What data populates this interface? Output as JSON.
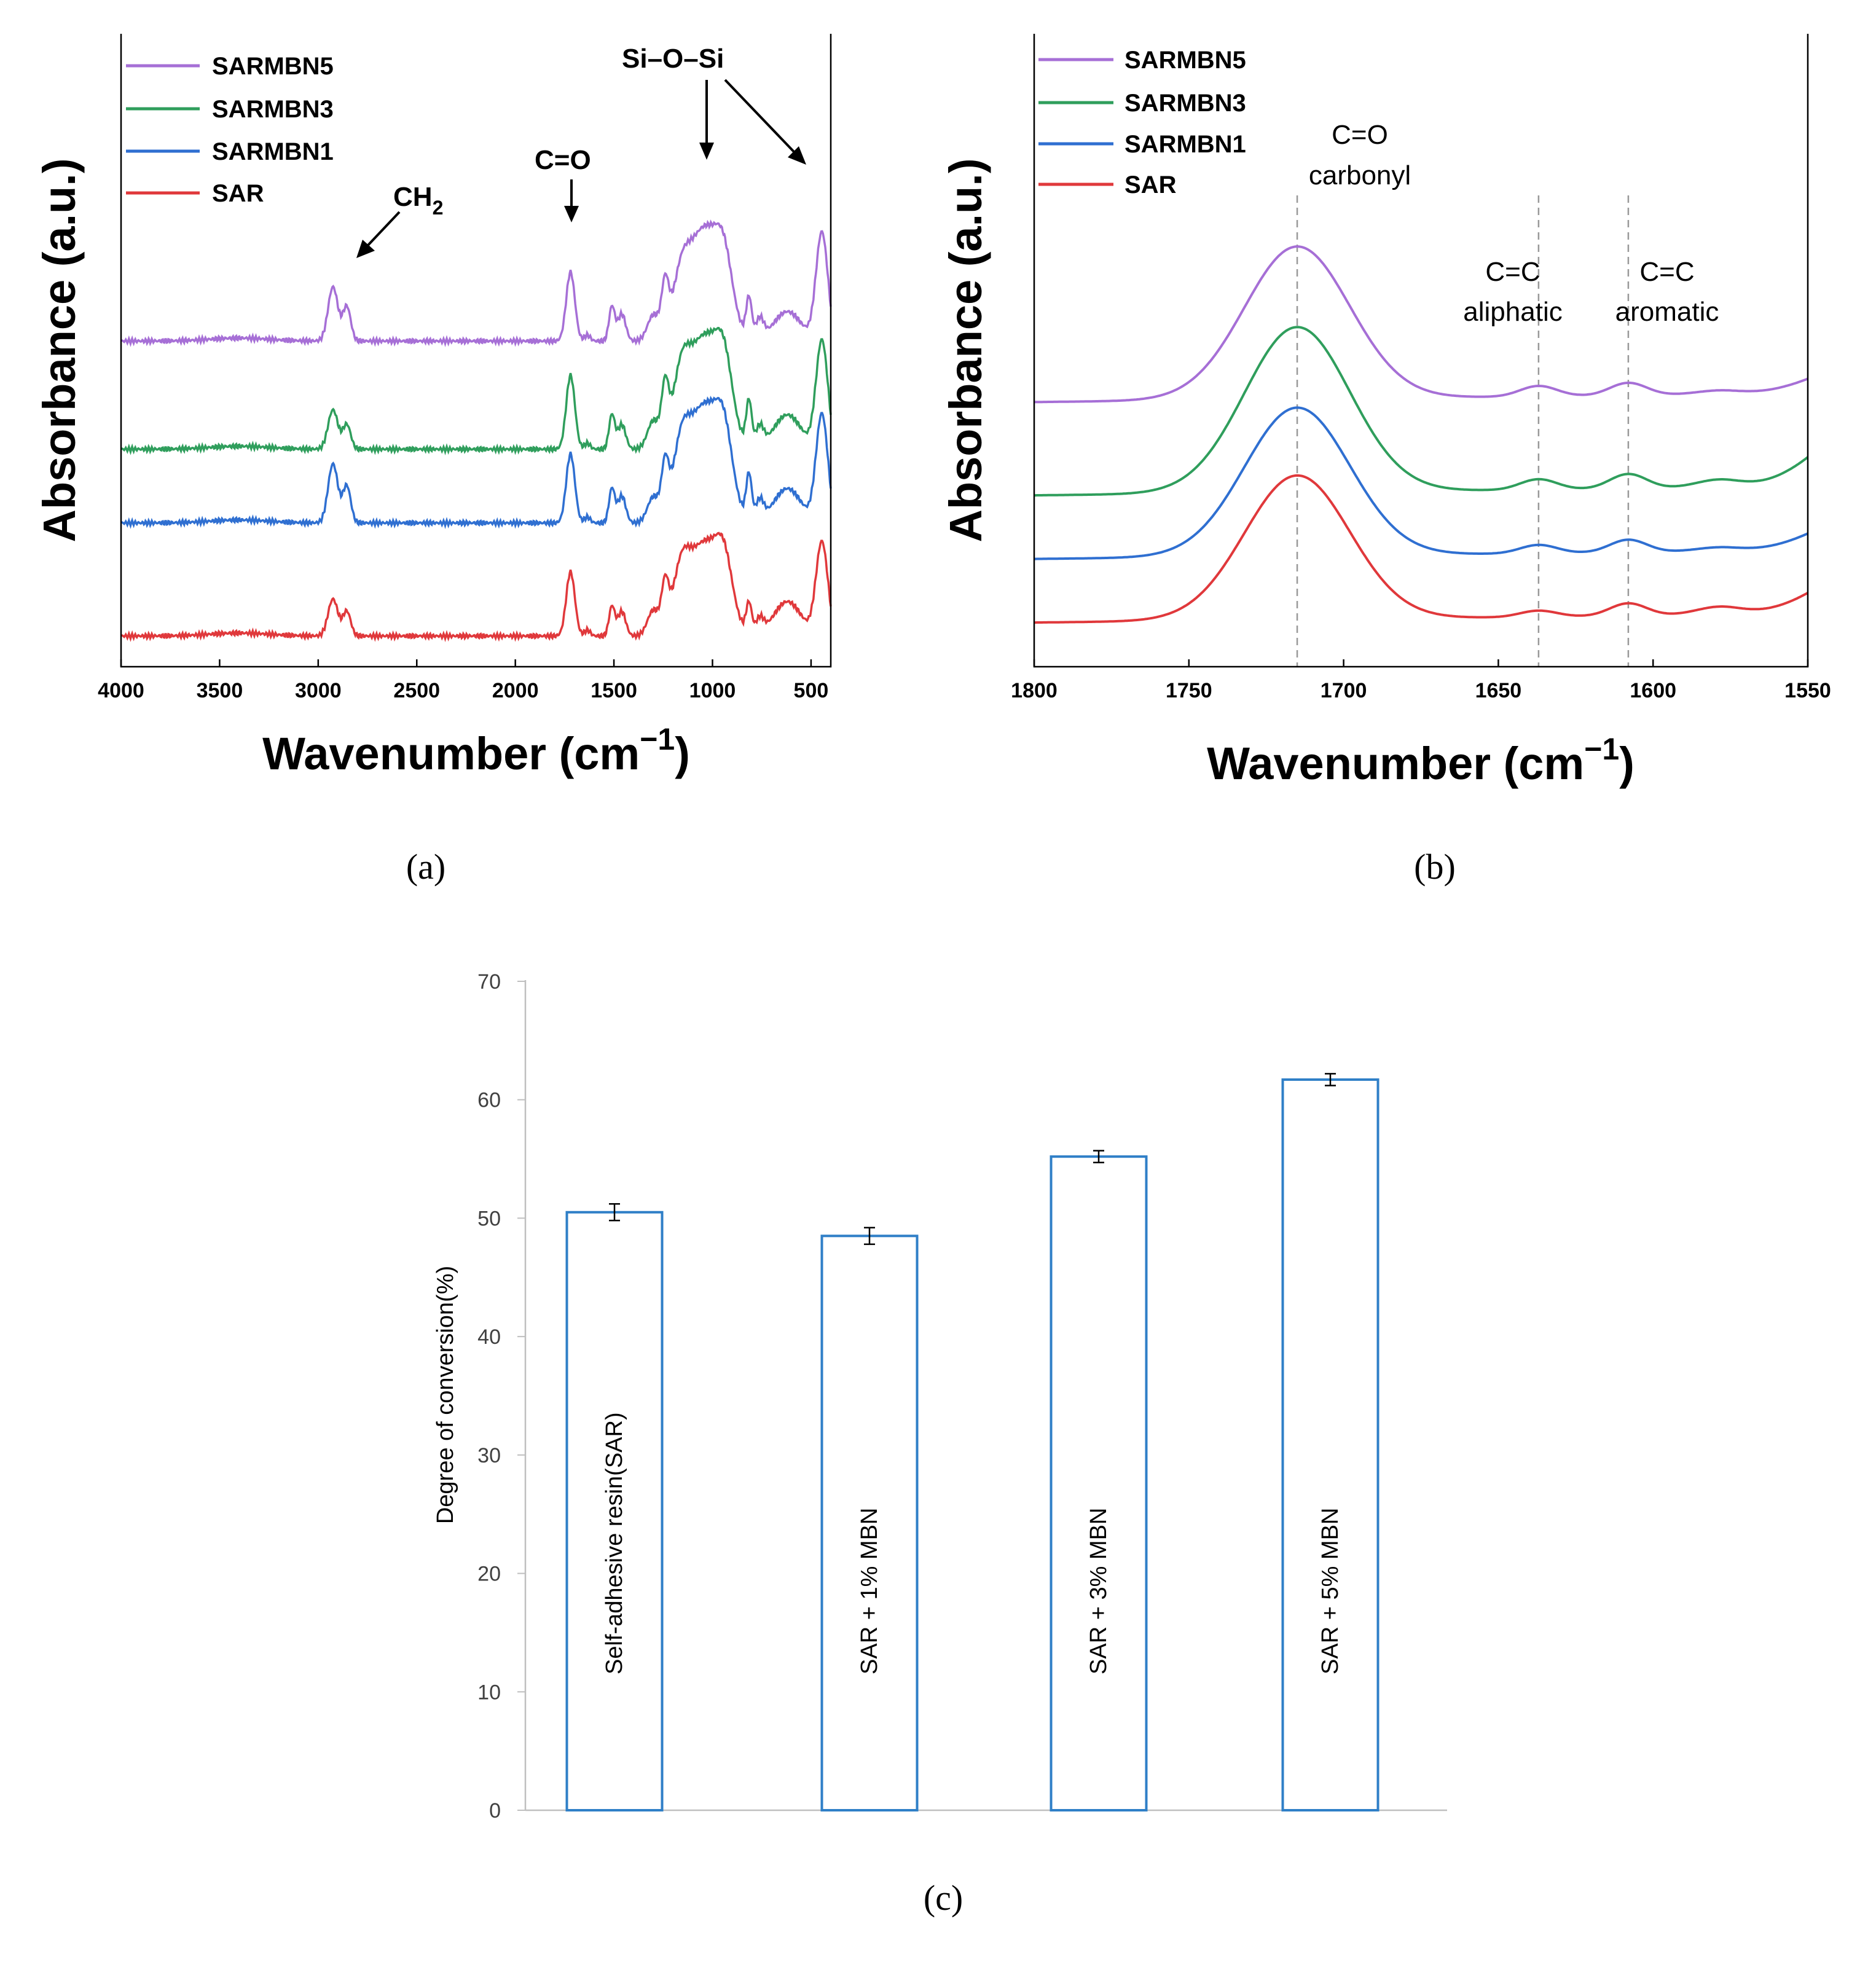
{
  "panel_labels": {
    "a": "(a)",
    "b": "(b)",
    "c": "(c)"
  },
  "colors": {
    "SARMBN5": "#a66fd6",
    "SARMBN3": "#2f9e5c",
    "SARMBN1": "#2f6fd1",
    "SAR": "#e0383b",
    "bar_outline": "#2f7fc7",
    "axis": "#000000",
    "light_axis": "#bfbfbf",
    "guide": "#999999"
  },
  "chart_data": [
    {
      "id": "a",
      "type": "line",
      "title": "",
      "xlabel": "Wavenumber (cm",
      "xlabel_sup": "−1",
      "xlabel_close": ")",
      "ylabel": "Absorbance (a.u.)",
      "xlim": [
        4000,
        400
      ],
      "ylim": [
        0,
        10
      ],
      "xticks": [
        4000,
        3500,
        3000,
        2500,
        2000,
        1500,
        1000,
        500
      ],
      "yticks_shown": false,
      "legend": {
        "placement": "top-left",
        "entries": [
          "SARMBN5",
          "SARMBN3",
          "SARMBN1",
          "SAR"
        ]
      },
      "annotations": {
        "ch2": "CH",
        "ch2_sub": "2",
        "co": "C=O",
        "siosi": "Si–O–Si"
      },
      "series": [
        {
          "name": "SARMBN5",
          "offset": 6.0,
          "peaks": [
            [
              3400,
              0.06,
              150
            ],
            [
              2925,
              1.1,
              25
            ],
            [
              2855,
              0.7,
              20
            ],
            [
              1720,
              1.4,
              22
            ],
            [
              1635,
              0.12,
              15
            ],
            [
              1510,
              0.7,
              15
            ],
            [
              1460,
              0.55,
              20
            ],
            [
              1300,
              0.5,
              30
            ],
            [
              1240,
              1.0,
              18
            ],
            [
              1160,
              0.8,
              40
            ],
            [
              1040,
              2.3,
              90
            ],
            [
              940,
              0.9,
              40
            ],
            [
              815,
              0.8,
              14
            ],
            [
              760,
              0.4,
              20
            ],
            [
              620,
              0.6,
              70
            ],
            [
              445,
              2.2,
              30
            ]
          ]
        },
        {
          "name": "SARMBN3",
          "offset": 3.8,
          "peaks": [
            [
              3400,
              0.06,
              150
            ],
            [
              2925,
              0.8,
              25
            ],
            [
              2855,
              0.5,
              20
            ],
            [
              1720,
              1.5,
              22
            ],
            [
              1635,
              0.12,
              15
            ],
            [
              1510,
              0.7,
              15
            ],
            [
              1460,
              0.5,
              20
            ],
            [
              1300,
              0.55,
              30
            ],
            [
              1240,
              1.1,
              18
            ],
            [
              1160,
              1.0,
              40
            ],
            [
              1040,
              2.3,
              90
            ],
            [
              940,
              1.0,
              40
            ],
            [
              815,
              0.9,
              14
            ],
            [
              760,
              0.4,
              20
            ],
            [
              620,
              0.7,
              70
            ],
            [
              445,
              2.2,
              30
            ]
          ]
        },
        {
          "name": "SARMBN1",
          "offset": 2.3,
          "peaks": [
            [
              3400,
              0.06,
              150
            ],
            [
              2925,
              1.2,
              25
            ],
            [
              2855,
              0.75,
              20
            ],
            [
              1720,
              1.4,
              22
            ],
            [
              1635,
              0.12,
              15
            ],
            [
              1510,
              0.7,
              15
            ],
            [
              1460,
              0.55,
              20
            ],
            [
              1300,
              0.5,
              30
            ],
            [
              1240,
              1.0,
              18
            ],
            [
              1160,
              1.0,
              40
            ],
            [
              1040,
              2.4,
              90
            ],
            [
              940,
              1.0,
              40
            ],
            [
              815,
              0.9,
              14
            ],
            [
              760,
              0.4,
              20
            ],
            [
              620,
              0.7,
              70
            ],
            [
              445,
              2.2,
              30
            ]
          ]
        },
        {
          "name": "SAR",
          "offset": 0.0,
          "peaks": [
            [
              3400,
              0.06,
              150
            ],
            [
              2925,
              0.75,
              25
            ],
            [
              2855,
              0.5,
              20
            ],
            [
              1720,
              1.3,
              22
            ],
            [
              1635,
              0.12,
              15
            ],
            [
              1510,
              0.6,
              15
            ],
            [
              1460,
              0.5,
              20
            ],
            [
              1300,
              0.5,
              30
            ],
            [
              1240,
              0.9,
              18
            ],
            [
              1160,
              0.9,
              40
            ],
            [
              1040,
              1.9,
              90
            ],
            [
              940,
              0.9,
              40
            ],
            [
              815,
              0.6,
              14
            ],
            [
              760,
              0.3,
              20
            ],
            [
              620,
              0.7,
              70
            ],
            [
              445,
              1.9,
              30
            ]
          ]
        }
      ]
    },
    {
      "id": "b",
      "type": "line",
      "title": "",
      "xlabel": "Wavenumber (cm",
      "xlabel_sup": "−1",
      "xlabel_close": ")",
      "ylabel": "Absorbance (a.u.)",
      "xlim": [
        1800,
        1550
      ],
      "ylim": [
        0,
        10
      ],
      "xticks": [
        1800,
        1750,
        1700,
        1650,
        1600,
        1550
      ],
      "yticks_shown": false,
      "legend": {
        "placement": "top-left",
        "entries": [
          "SARMBN5",
          "SARMBN3",
          "SARMBN1",
          "SAR"
        ]
      },
      "guides": [
        1715,
        1637,
        1608
      ],
      "annotations": {
        "co_line1": "C=O",
        "co_line2": "carbonyl",
        "aliphatic_line1": "C=C",
        "aliphatic_line2": "aliphatic",
        "aromatic_line1": "C=C",
        "aromatic_line2": "aromatic"
      },
      "series": [
        {
          "name": "SARMBN5",
          "offset": 5.3,
          "base": [
            0.0,
            0.2
          ],
          "peaks": [
            [
              1715,
              3.6,
              17
            ],
            [
              1637,
              0.25,
              6
            ],
            [
              1608,
              0.3,
              6
            ],
            [
              1578,
              0.1,
              8
            ]
          ],
          "tail_rise": 0.35
        },
        {
          "name": "SARMBN3",
          "offset": 3.1,
          "base": [
            0.0,
            0.2
          ],
          "peaks": [
            [
              1715,
              3.9,
              17
            ],
            [
              1637,
              0.25,
              6
            ],
            [
              1608,
              0.35,
              6
            ],
            [
              1578,
              0.2,
              8
            ]
          ],
          "tail_rise": 0.7
        },
        {
          "name": "SARMBN1",
          "offset": 1.6,
          "base": [
            0.0,
            0.2
          ],
          "peaks": [
            [
              1715,
              3.5,
              17
            ],
            [
              1637,
              0.2,
              6
            ],
            [
              1608,
              0.3,
              6
            ],
            [
              1578,
              0.1,
              8
            ]
          ],
          "tail_rise": 0.4
        },
        {
          "name": "SAR",
          "offset": 0.1,
          "base": [
            0.0,
            0.2
          ],
          "peaks": [
            [
              1715,
              3.4,
              17
            ],
            [
              1637,
              0.15,
              6
            ],
            [
              1608,
              0.3,
              6
            ],
            [
              1578,
              0.2,
              8
            ]
          ],
          "tail_rise": 0.5
        }
      ]
    },
    {
      "id": "c",
      "type": "bar",
      "title": "",
      "xlabel": "",
      "ylabel": "Degree of conversion(%)",
      "ylim": [
        0,
        70
      ],
      "yticks": [
        0,
        10,
        20,
        30,
        40,
        50,
        60,
        70
      ],
      "categories": [
        "Self-adhesive resin(SAR)",
        "SAR + 1% MBN",
        "SAR + 3% MBN",
        "SAR + 5% MBN"
      ],
      "values": [
        50.5,
        48.5,
        55.2,
        61.7
      ],
      "errors": [
        0.7,
        0.7,
        0.5,
        0.5
      ]
    }
  ]
}
